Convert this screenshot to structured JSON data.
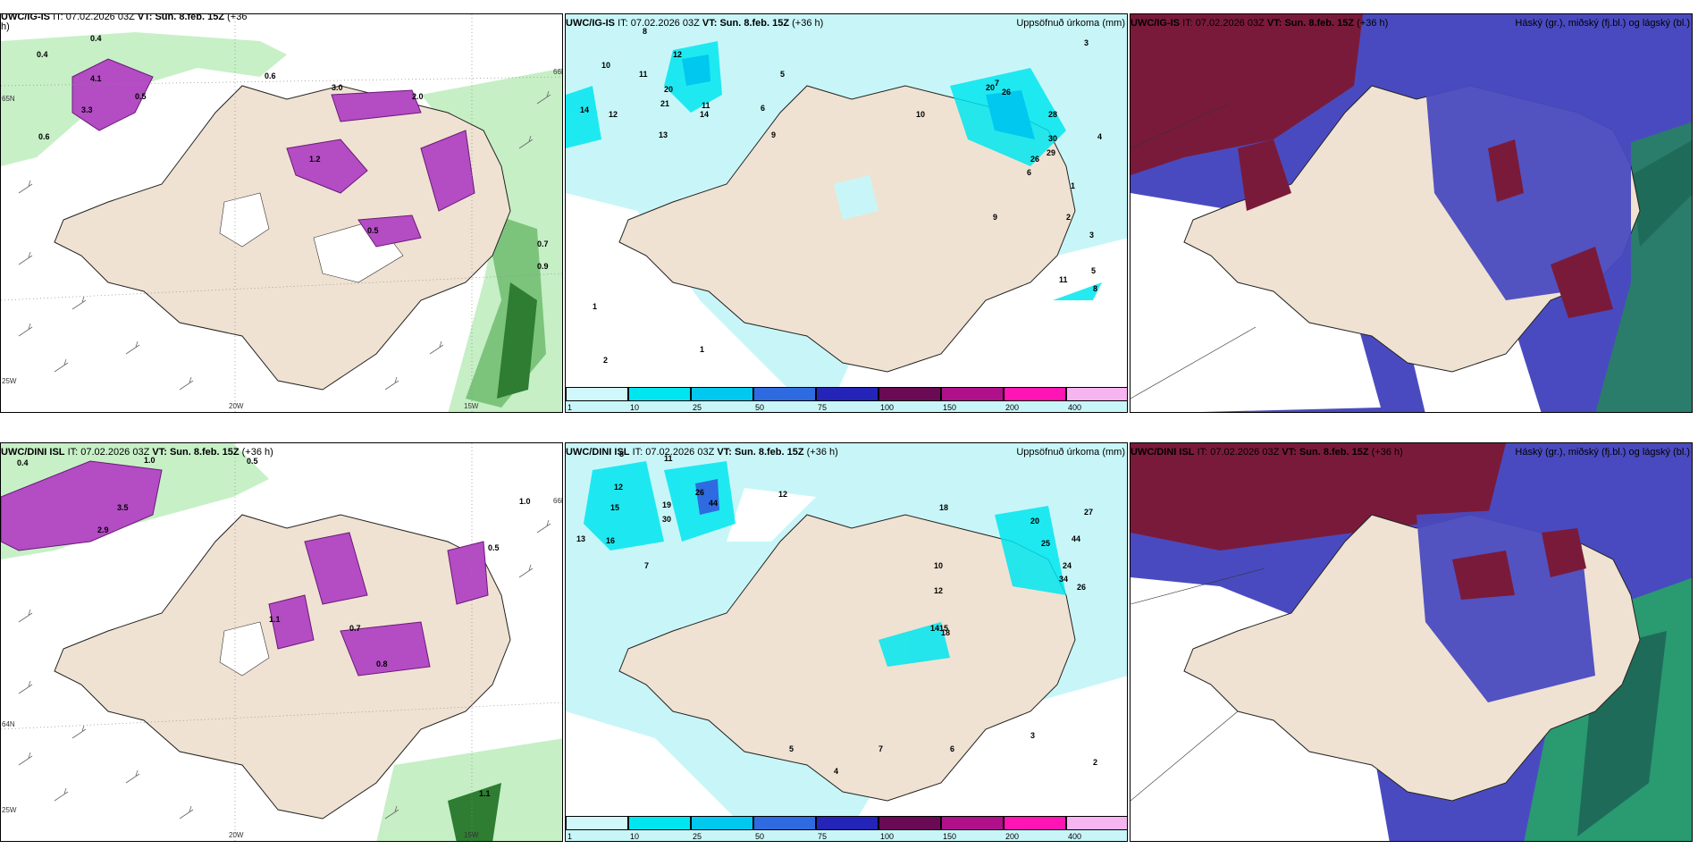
{
  "panels": {
    "a": {
      "model": "UWC/IG-IS",
      "it_label": "IT:",
      "it": "07.02.2026 03Z",
      "vt_label": "VT: Sun. 8.feb. 15Z",
      "lead": "(+36",
      "lead2": "h)",
      "right": ""
    },
    "b": {
      "model": "UWC/IG-IS",
      "it_label": "IT:",
      "it": "07.02.2026 03Z",
      "vt_label": "VT: Sun. 8.feb. 15Z",
      "lead": "(+36 h)",
      "right": "Uppsöfnuð úrkoma (mm)"
    },
    "c": {
      "model": "UWC/IG-IS",
      "it_label": "IT:",
      "it": "07.02.2026 03Z",
      "vt_label": "VT: Sun. 8.feb. 15Z",
      "lead": "(+36 h)",
      "right": "Háský (gr.), miðský (fj.bl.) og lágský (bl.)"
    },
    "d": {
      "model": "UWC/DINI ISL",
      "it_label": "IT:",
      "it": "07.02.2026 03Z",
      "vt_label": "VT: Sun. 8.feb. 15Z",
      "lead": "(+36 h)",
      "right": ""
    },
    "e": {
      "model": "UWC/DINI ISL",
      "it_label": "IT:",
      "it": "07.02.2026 03Z",
      "vt_label": "VT: Sun. 8.feb. 15Z",
      "lead": "(+36 h)",
      "right": "Uppsöfnuð úrkoma (mm)"
    },
    "f": {
      "model": "UWC/DINI ISL",
      "it_label": "IT:",
      "it": "07.02.2026 03Z",
      "vt_label": "VT: Sun. 8.feb. 15Z",
      "lead": "(+36 h)",
      "right": "Háský (gr.), miðský (fj.bl.) og lágský (bl.)"
    }
  },
  "legend": {
    "ticks": [
      "1",
      "10",
      "25",
      "50",
      "75",
      "100",
      "150",
      "200",
      "400"
    ],
    "colors": [
      "#d0f8fb",
      "#00e6f0",
      "#00c8ee",
      "#2f6be0",
      "#2424b8",
      "#6a0a54",
      "#b0108a",
      "#ff14b4",
      "#f6b4f0"
    ]
  },
  "axes": {
    "lon": [
      "20W",
      "15W"
    ],
    "lat": [
      "65N",
      "64N",
      "66N"
    ],
    "west": "25W"
  },
  "wind_labels": {
    "top": [
      "0.4",
      "0.4",
      "0.6",
      "0.5",
      "0.6",
      "4.1",
      "3.3",
      "3.0",
      "2.0",
      "1.2",
      "0.5",
      "0.7",
      "0.9"
    ],
    "bottom": [
      "0.4",
      "1.0",
      "0.5",
      "3.5",
      "2.9",
      "1.0",
      "1.1",
      "0.5",
      "0.7",
      "0.8",
      "1.1"
    ]
  },
  "precip_labels": {
    "top": [
      "8",
      "10",
      "14",
      "12",
      "11",
      "20",
      "21",
      "14",
      "11",
      "6",
      "5",
      "12",
      "13",
      "9",
      "28",
      "20",
      "26",
      "30",
      "29",
      "26",
      "3",
      "4",
      "1",
      "2",
      "3",
      "5",
      "7",
      "6",
      "10",
      "9",
      "11",
      "8",
      "1",
      "2",
      "1"
    ],
    "bottom": [
      "8",
      "11",
      "12",
      "15",
      "13",
      "16",
      "19",
      "30",
      "26",
      "44",
      "7",
      "12",
      "18",
      "20",
      "27",
      "44",
      "25",
      "24",
      "34",
      "26",
      "14",
      "15",
      "18",
      "12",
      "10",
      "3",
      "6",
      "7",
      "5",
      "4",
      "2"
    ]
  },
  "colors": {
    "land": "#efe2d2",
    "sea": "#ffffff",
    "precip_light": "#c8f6f8",
    "cloud_high": "#7a1a3a",
    "cloud_mid": "#4a4ac0",
    "cloud_low": "#2a9a70",
    "wind_magenta": "#b040c0",
    "wind_green": "#9cd89c"
  }
}
